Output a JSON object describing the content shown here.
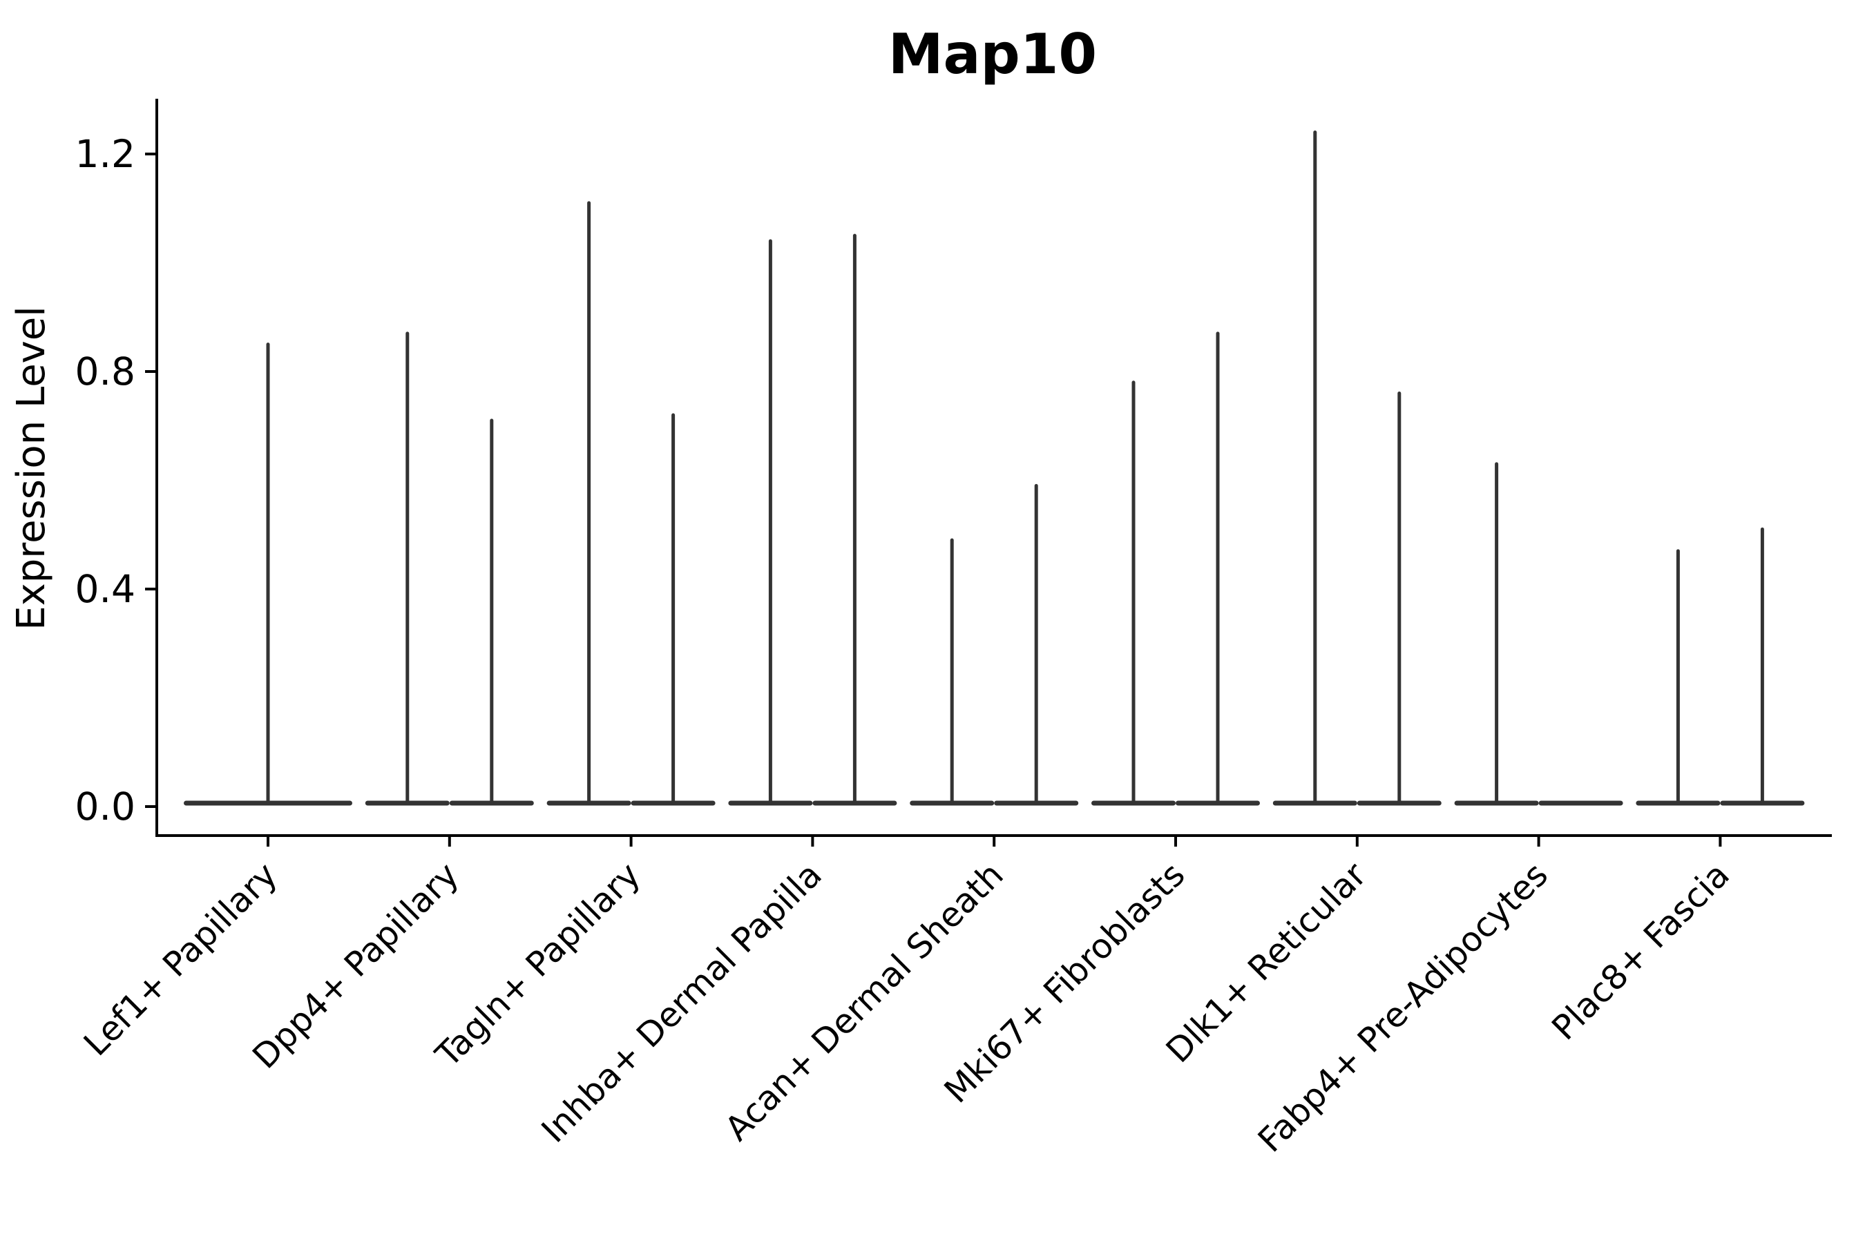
{
  "chart_data": {
    "type": "violin",
    "title": "Map10",
    "ylabel": "Expression Level",
    "xlabel": "",
    "background_color": "#ffffff",
    "violin_color": "#333333",
    "axis_color": "#000000",
    "grid": "off",
    "legend": "none",
    "y_axis": {
      "ticks": [
        0.0,
        0.4,
        0.8,
        1.2
      ],
      "tick_labels": [
        "0.0",
        "0.4",
        "0.8",
        "1.2"
      ],
      "range_shown": [
        -0.05,
        1.3
      ]
    },
    "note": "Each category shows stacked-needle violins: a wide flat base at expression 0 and a thin spike up to the maximum expression value. Some categories have two adjacent violins (left/right), Lef1+ Papillary has a single centered violin, and the right violin of Fabp4+ Pre-Adipocytes is flat at 0 (no spike).",
    "categories": [
      {
        "label": "Lef1+ Papillary",
        "violins": [
          {
            "slot": "center",
            "max": 0.85
          }
        ]
      },
      {
        "label": "Dpp4+ Papillary",
        "violins": [
          {
            "slot": "left",
            "max": 0.87
          },
          {
            "slot": "right",
            "max": 0.71
          }
        ]
      },
      {
        "label": "Tagln+ Papillary",
        "violins": [
          {
            "slot": "left",
            "max": 1.11
          },
          {
            "slot": "right",
            "max": 0.72
          }
        ]
      },
      {
        "label": "Inhba+ Dermal Papilla",
        "violins": [
          {
            "slot": "left",
            "max": 1.04
          },
          {
            "slot": "right",
            "max": 1.05
          }
        ]
      },
      {
        "label": "Acan+ Dermal Sheath",
        "violins": [
          {
            "slot": "left",
            "max": 0.49
          },
          {
            "slot": "right",
            "max": 0.59
          }
        ]
      },
      {
        "label": "Mki67+ Fibroblasts",
        "violins": [
          {
            "slot": "left",
            "max": 0.78
          },
          {
            "slot": "right",
            "max": 0.87
          }
        ]
      },
      {
        "label": "Dlk1+ Reticular",
        "violins": [
          {
            "slot": "left",
            "max": 1.24
          },
          {
            "slot": "right",
            "max": 0.76
          }
        ]
      },
      {
        "label": "Fabp4+ Pre-Adipocytes",
        "violins": [
          {
            "slot": "left",
            "max": 0.63
          },
          {
            "slot": "right",
            "max": 0.0
          }
        ]
      },
      {
        "label": "Plac8+ Fascia",
        "violins": [
          {
            "slot": "left",
            "max": 0.47
          },
          {
            "slot": "right",
            "max": 0.51
          }
        ]
      }
    ]
  }
}
